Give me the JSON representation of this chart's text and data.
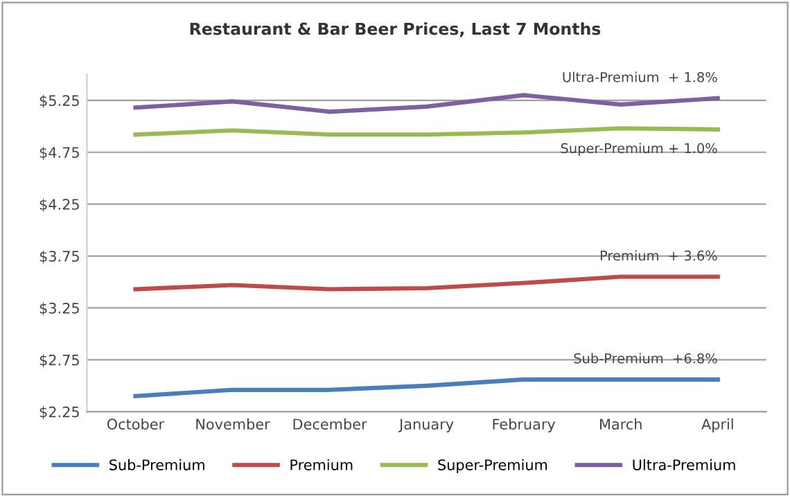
{
  "chart_data": {
    "type": "line",
    "title": "Restaurant & Bar Beer Prices, Last 7 Months",
    "categories": [
      "October",
      "November",
      "December",
      "January",
      "February",
      "March",
      "April"
    ],
    "series": [
      {
        "name": "Sub-Premium",
        "color": "#4a7ebb",
        "values": [
          2.4,
          2.46,
          2.46,
          2.5,
          2.56,
          2.56,
          2.56
        ]
      },
      {
        "name": "Premium",
        "color": "#be4b48",
        "values": [
          3.43,
          3.47,
          3.43,
          3.44,
          3.49,
          3.55,
          3.55
        ]
      },
      {
        "name": "Super-Premium",
        "color": "#98b954",
        "values": [
          4.92,
          4.96,
          4.92,
          4.92,
          4.94,
          4.98,
          4.97
        ]
      },
      {
        "name": "Ultra-Premium",
        "color": "#7d60a0",
        "values": [
          5.18,
          5.24,
          5.14,
          5.19,
          5.3,
          5.21,
          5.27
        ]
      }
    ],
    "ylim": [
      2.25,
      5.5
    ],
    "yticks": [
      {
        "value": 2.25,
        "label": "$2.25"
      },
      {
        "value": 2.75,
        "label": "$2.75"
      },
      {
        "value": 3.25,
        "label": "$3.25"
      },
      {
        "value": 3.75,
        "label": "$3.75"
      },
      {
        "value": 4.25,
        "label": "$4.25"
      },
      {
        "value": 4.75,
        "label": "$4.75"
      },
      {
        "value": 5.25,
        "label": "$5.25"
      }
    ],
    "annotations": [
      "Sub-Premium  +6.8%",
      "Premium  + 3.6%",
      "Super-Premium + 1.0%",
      "Ultra-Premium  + 1.8%"
    ],
    "grid": "y",
    "legend": "bottom",
    "marker": "none",
    "line_style": "solid"
  }
}
